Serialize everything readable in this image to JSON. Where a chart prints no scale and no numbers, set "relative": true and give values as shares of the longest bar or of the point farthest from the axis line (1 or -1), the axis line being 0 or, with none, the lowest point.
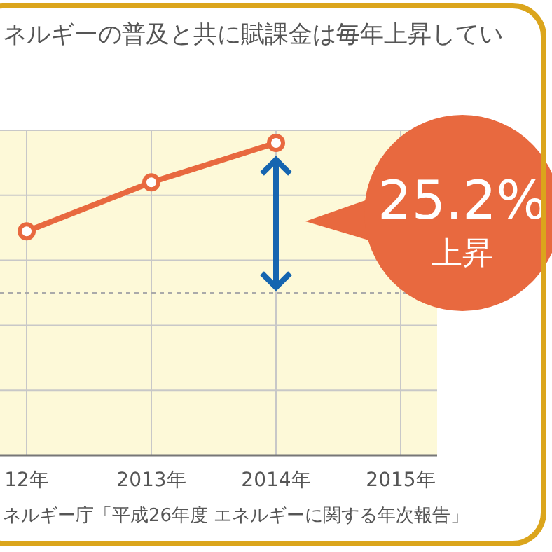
{
  "chart_data": {
    "type": "line",
    "title": "ネルギーの普及と共に賦課金は毎年上昇してい",
    "categories": [
      "12年",
      "2013年",
      "2014年",
      "2015年"
    ],
    "series": [
      {
        "color": "#e8693f",
        "values": [
          0.717,
          0.874,
          1,
          null
        ]
      }
    ],
    "relative": true,
    "marker": "circle",
    "grid": true,
    "ref_lines": [
      {
        "axis": "y",
        "value": 0.52,
        "line_style": "dashed",
        "color": "#aaaaaa"
      }
    ],
    "annotations": [
      {
        "text": "25.2% 上昇",
        "x": "2014年",
        "y": 1
      },
      "ネルギー庁「平成26年度 エネルギーに関する年次報告」"
    ]
  }
}
